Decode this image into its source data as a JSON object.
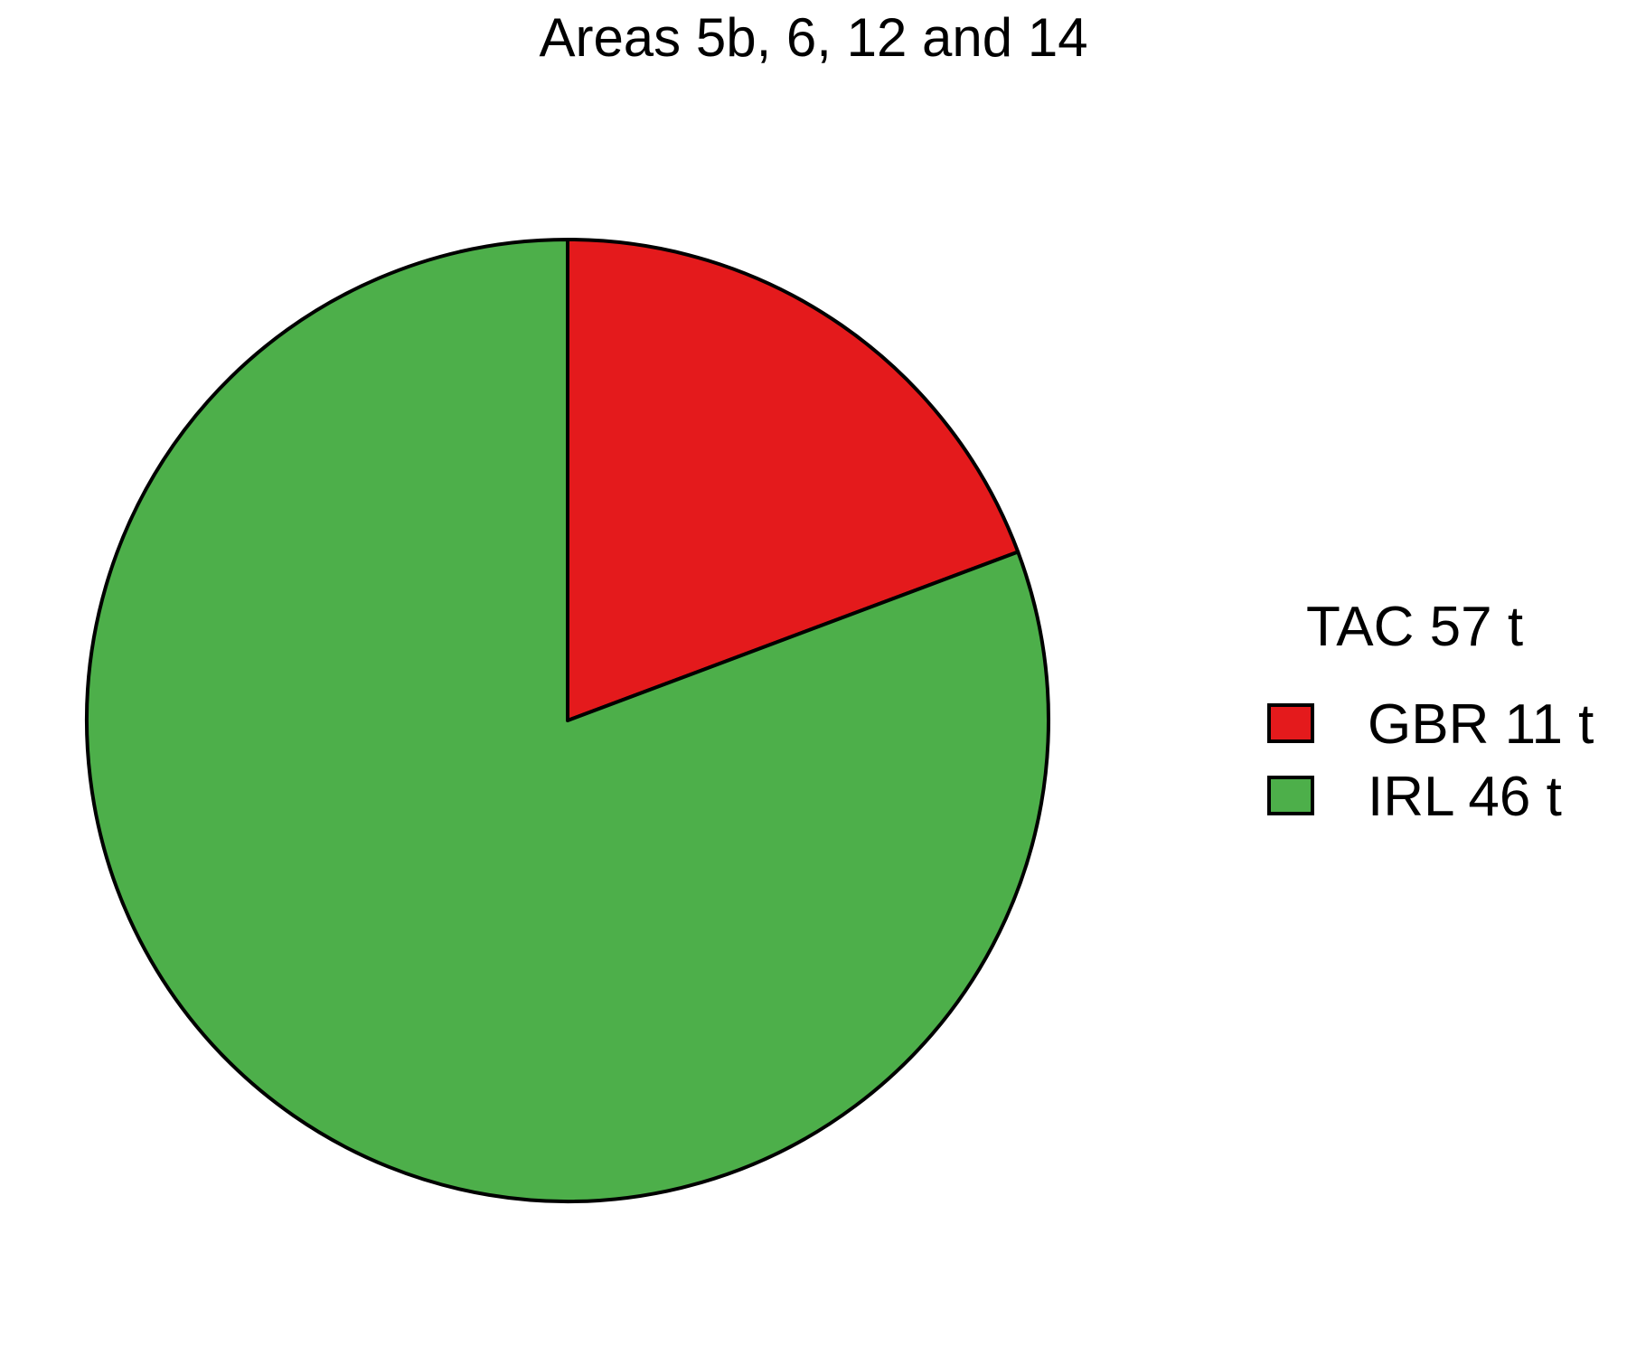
{
  "chart_data": {
    "type": "pie",
    "title": "Areas 5b, 6, 12 and 14",
    "legend": {
      "title": "TAC 57 t",
      "placement": "right"
    },
    "slices": [
      {
        "label": "GBR 11 t",
        "category": "GBR",
        "value": 11,
        "color": "#E41A1C"
      },
      {
        "label": "IRL 46 t",
        "category": "IRL",
        "value": 46,
        "color": "#4DAF4A"
      }
    ],
    "start_angle": "12 o'clock",
    "direction": "clockwise"
  }
}
